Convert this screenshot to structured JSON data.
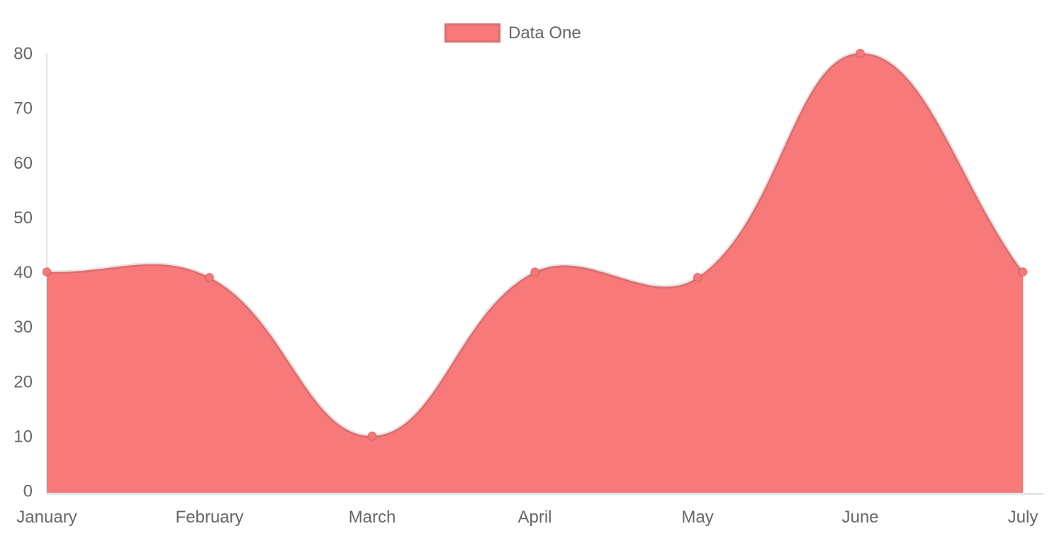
{
  "chart_data": {
    "type": "area",
    "title": "",
    "categories": [
      "January",
      "February",
      "March",
      "April",
      "May",
      "June",
      "July"
    ],
    "series": [
      {
        "name": "Data One",
        "values": [
          40,
          39,
          10,
          40,
          39,
          80,
          40
        ]
      }
    ],
    "y_ticks": [
      0,
      10,
      20,
      30,
      40,
      50,
      60,
      70,
      80
    ],
    "ylim": [
      0,
      80
    ],
    "xlabel": "",
    "ylabel": "",
    "legend_position": "top-center",
    "grid": false,
    "colors": {
      "fill": "#f87979",
      "point_fill": "#f87979",
      "line_border": "rgba(0,0,0,0.1)",
      "axis_line": "rgba(0,0,0,0.1)",
      "tick_text": "#666666"
    }
  }
}
